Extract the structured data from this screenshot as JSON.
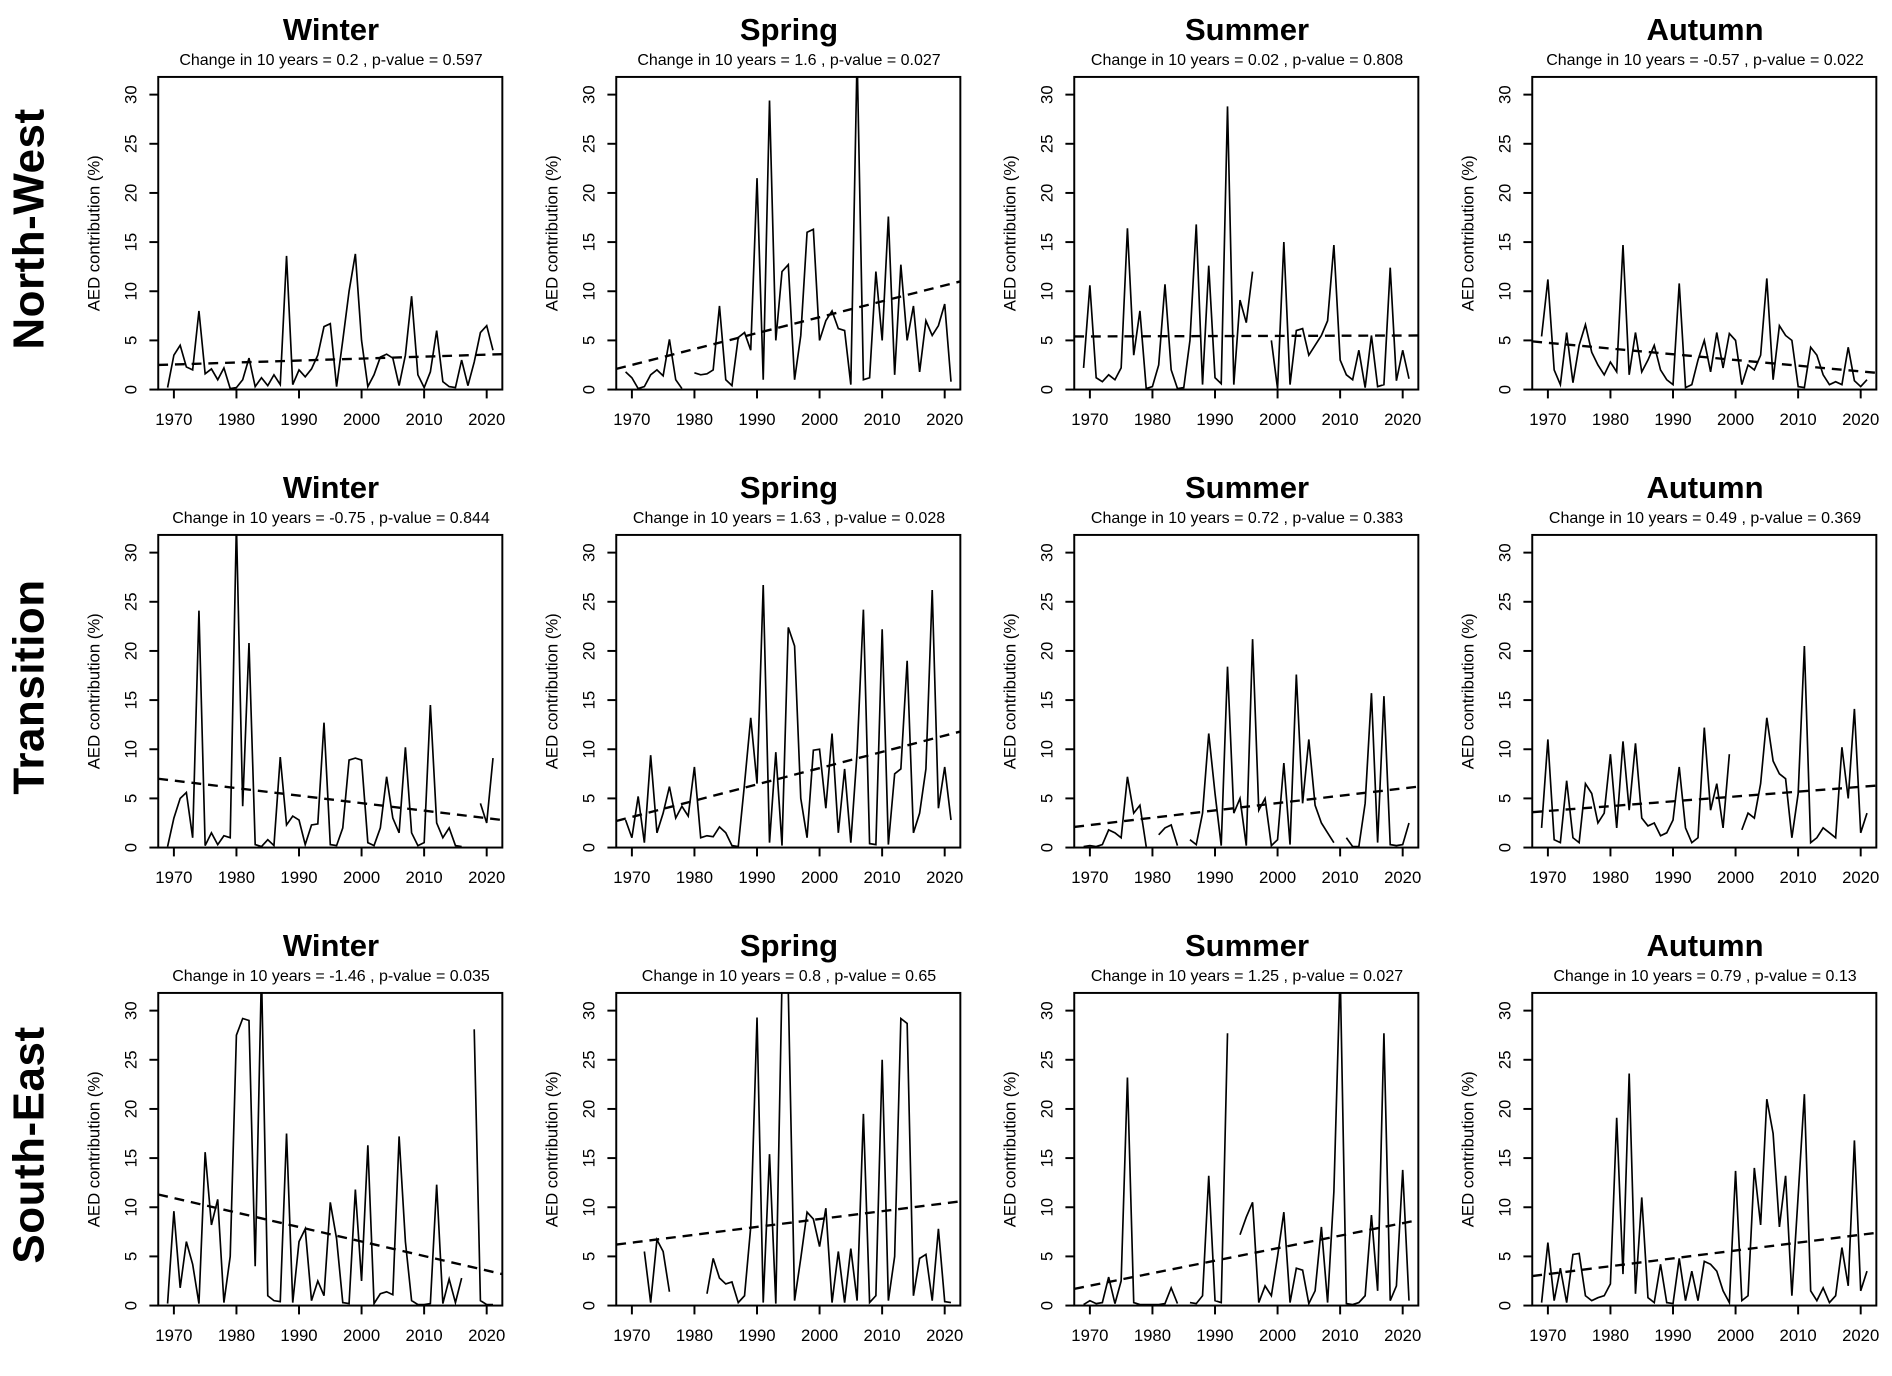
{
  "figure": {
    "ylabel": "AED contribution (%)",
    "x_tick_labels": [
      "1970",
      "1980",
      "1990",
      "2000",
      "2010",
      "2020"
    ],
    "y_tick_labels": [
      "0",
      "5",
      "10",
      "15",
      "20",
      "25",
      "30"
    ],
    "line_color": "#000000",
    "background_color": "#ffffff"
  },
  "chart_data": {
    "type": "line",
    "rows": [
      "North-West",
      "Transition",
      "South-East"
    ],
    "columns": [
      "Winter",
      "Spring",
      "Summer",
      "Autumn"
    ],
    "xlabel": "",
    "ylabel": "AED contribution (%)",
    "x_ticks": [
      1970,
      1980,
      1990,
      2000,
      2010,
      2020
    ],
    "y_ticks": [
      0,
      5,
      10,
      15,
      20,
      25,
      30
    ],
    "x_range": [
      1967.5,
      2022.5
    ],
    "y_range": [
      0,
      31.8
    ],
    "x_years_start": 1969,
    "x_years_end": 2021,
    "panels": [
      {
        "region": "North-West",
        "season": "Winter",
        "subtitle": "Change in 10 years = 0.2 , p-value = 0.597",
        "change_per_10y": 0.2,
        "p_value": 0.597,
        "trend_endpoints": [
          2.5,
          3.6
        ],
        "values": [
          0.2,
          3.5,
          4.5,
          2.3,
          2.0,
          8.0,
          1.6,
          2.1,
          1.0,
          2.2,
          0.1,
          0.2,
          1.0,
          3.2,
          0.3,
          1.2,
          0.4,
          1.5,
          0.5,
          13.6,
          0.5,
          2.0,
          1.3,
          2.1,
          3.5,
          6.4,
          6.7,
          0.3,
          5.0,
          10.0,
          13.8,
          5.0,
          0.3,
          1.5,
          3.3,
          3.6,
          3.2,
          0.4,
          3.5,
          9.5,
          1.5,
          0.2,
          1.8,
          6.0,
          0.8,
          0.3,
          0.2,
          3.0,
          0.4,
          2.8,
          5.8,
          6.5,
          4.0
        ]
      },
      {
        "region": "North-West",
        "season": "Spring",
        "subtitle": "Change in 10 years = 1.6 , p-value = 0.027",
        "change_per_10y": 1.6,
        "p_value": 0.027,
        "trend_endpoints": [
          2.1,
          11.0
        ],
        "values": [
          1.8,
          1.2,
          0.1,
          0.3,
          1.5,
          2.0,
          1.4,
          5.1,
          1.0,
          0.1,
          null,
          1.7,
          1.5,
          1.6,
          2.0,
          8.5,
          1.0,
          0.4,
          5.3,
          5.8,
          4.0,
          21.5,
          1.0,
          29.4,
          5.0,
          12.0,
          12.7,
          1.0,
          5.5,
          16.0,
          16.3,
          5.0,
          7.0,
          8.0,
          6.2,
          6.0,
          0.5,
          34.0,
          1.0,
          1.2,
          12.0,
          5.0,
          17.6,
          1.5,
          12.7,
          5.0,
          8.5,
          1.8,
          7.0,
          5.5,
          6.5,
          8.7,
          0.8
        ]
      },
      {
        "region": "North-West",
        "season": "Summer",
        "subtitle": "Change in 10 years = 0.02 , p-value = 0.808",
        "change_per_10y": 0.02,
        "p_value": 0.808,
        "trend_endpoints": [
          5.4,
          5.5
        ],
        "values": [
          2.2,
          10.6,
          1.2,
          0.8,
          1.5,
          1.0,
          2.2,
          16.4,
          3.5,
          8.0,
          0.1,
          0.3,
          2.5,
          10.7,
          2.0,
          0.1,
          0.2,
          5.0,
          16.8,
          0.5,
          12.6,
          1.2,
          0.6,
          28.8,
          0.5,
          9.1,
          6.8,
          12.0,
          null,
          null,
          5.0,
          0.1,
          15.0,
          0.5,
          6.0,
          6.2,
          3.5,
          4.5,
          5.5,
          7.0,
          14.7,
          3.0,
          1.5,
          1.0,
          4.0,
          0.2,
          5.5,
          0.3,
          0.5,
          12.4,
          0.9,
          4.0,
          1.1
        ]
      },
      {
        "region": "North-West",
        "season": "Autumn",
        "subtitle": "Change in 10 years = -0.57 , p-value = 0.022",
        "change_per_10y": -0.57,
        "p_value": 0.022,
        "trend_endpoints": [
          4.9,
          1.7
        ],
        "values": [
          5.4,
          11.2,
          2.0,
          0.5,
          5.8,
          0.7,
          4.5,
          6.6,
          3.8,
          2.5,
          1.5,
          2.8,
          1.8,
          14.7,
          1.5,
          5.8,
          1.8,
          3.0,
          4.5,
          2.0,
          1.0,
          0.5,
          10.8,
          0.2,
          0.5,
          3.0,
          5.0,
          1.8,
          5.8,
          2.2,
          5.7,
          5.0,
          0.5,
          2.5,
          2.0,
          3.5,
          11.3,
          1.0,
          6.5,
          5.5,
          5.0,
          0.3,
          0.2,
          4.3,
          3.5,
          1.5,
          0.5,
          0.8,
          0.5,
          4.3,
          0.9,
          0.3,
          1.0
        ]
      },
      {
        "region": "Transition",
        "season": "Winter",
        "subtitle": "Change in 10 years = -0.75 , p-value = 0.844",
        "change_per_10y": -0.75,
        "p_value": 0.844,
        "trend_endpoints": [
          7.0,
          2.8
        ],
        "values": [
          0.1,
          3.0,
          5.0,
          5.6,
          1.0,
          24.1,
          0.2,
          1.5,
          0.3,
          1.2,
          1.0,
          33.0,
          4.2,
          20.8,
          0.3,
          0.1,
          0.8,
          0.2,
          9.2,
          2.3,
          3.2,
          2.8,
          0.3,
          2.3,
          2.4,
          12.7,
          0.3,
          0.2,
          2.0,
          8.9,
          9.1,
          8.9,
          0.5,
          0.2,
          2.0,
          7.2,
          3.0,
          1.5,
          10.2,
          1.5,
          0.2,
          0.5,
          14.5,
          2.5,
          1.0,
          2.0,
          0.2,
          0.1,
          null,
          null,
          4.5,
          2.5,
          9.1
        ]
      },
      {
        "region": "Transition",
        "season": "Spring",
        "subtitle": "Change in 10 years = 1.63 , p-value = 0.028",
        "change_per_10y": 1.63,
        "p_value": 0.028,
        "trend_endpoints": [
          2.7,
          11.8
        ],
        "values": [
          2.8,
          1.0,
          5.2,
          0.5,
          9.4,
          1.5,
          3.5,
          6.2,
          3.0,
          4.2,
          3.2,
          8.2,
          1.0,
          1.2,
          1.1,
          2.1,
          1.5,
          0.2,
          0.1,
          6.5,
          13.2,
          6.5,
          26.7,
          0.5,
          9.7,
          0.2,
          22.4,
          20.5,
          5.0,
          1.0,
          9.9,
          10.0,
          4.0,
          11.6,
          1.5,
          8.0,
          0.5,
          9.7,
          24.2,
          0.4,
          0.3,
          22.2,
          0.3,
          7.5,
          8.0,
          19.0,
          1.5,
          3.5,
          8.0,
          26.2,
          4.0,
          8.2,
          2.8
        ]
      },
      {
        "region": "Transition",
        "season": "Summer",
        "subtitle": "Change in 10 years = 0.72 , p-value = 0.383",
        "change_per_10y": 0.72,
        "p_value": 0.383,
        "trend_endpoints": [
          2.1,
          6.2
        ],
        "values": [
          0.1,
          0.2,
          0.1,
          0.3,
          1.8,
          1.5,
          1.0,
          7.2,
          3.5,
          4.3,
          0.1,
          null,
          1.3,
          2.0,
          2.3,
          0.2,
          null,
          0.8,
          0.3,
          3.5,
          11.6,
          5.5,
          0.2,
          18.4,
          3.5,
          5.0,
          0.2,
          21.2,
          3.8,
          5.0,
          0.2,
          0.8,
          8.6,
          0.3,
          17.6,
          4.5,
          11.0,
          4.3,
          2.5,
          1.5,
          0.5,
          null,
          1.0,
          0.1,
          0.1,
          4.5,
          15.7,
          0.5,
          15.4,
          0.3,
          0.2,
          0.3,
          2.5
        ]
      },
      {
        "region": "Transition",
        "season": "Autumn",
        "subtitle": "Change in 10 years = 0.49 , p-value = 0.369",
        "change_per_10y": 0.49,
        "p_value": 0.369,
        "trend_endpoints": [
          3.6,
          6.3
        ],
        "values": [
          2.0,
          11.0,
          0.8,
          0.5,
          6.8,
          1.0,
          0.5,
          6.5,
          5.5,
          2.5,
          3.5,
          9.5,
          2.0,
          10.8,
          3.8,
          10.6,
          3.0,
          2.2,
          2.5,
          1.2,
          1.5,
          2.8,
          8.2,
          2.0,
          0.5,
          1.0,
          12.2,
          3.8,
          6.5,
          2.0,
          9.5,
          null,
          1.8,
          3.5,
          3.0,
          6.5,
          13.2,
          8.8,
          7.5,
          7.0,
          1.0,
          5.5,
          20.5,
          0.5,
          1.0,
          2.0,
          1.5,
          1.0,
          10.2,
          5.0,
          14.1,
          1.5,
          3.5
        ]
      },
      {
        "region": "South-East",
        "season": "Winter",
        "subtitle": "Change in 10 years = -1.46 , p-value = 0.035",
        "change_per_10y": -1.46,
        "p_value": 0.035,
        "trend_endpoints": [
          11.3,
          3.2
        ],
        "values": [
          0.2,
          9.6,
          1.8,
          6.5,
          4.2,
          0.2,
          15.6,
          8.2,
          10.8,
          0.3,
          5.0,
          27.5,
          29.2,
          29.0,
          4.0,
          34.0,
          1.0,
          0.5,
          0.4,
          17.5,
          0.3,
          6.5,
          7.8,
          0.5,
          2.5,
          1.0,
          10.5,
          6.8,
          0.3,
          0.2,
          11.8,
          2.5,
          16.3,
          0.2,
          1.2,
          1.4,
          1.1,
          17.2,
          6.5,
          0.5,
          0.1,
          0.1,
          0.2,
          12.3,
          0.2,
          2.7,
          0.3,
          2.8,
          null,
          28.1,
          0.5,
          0.1,
          0.1
        ]
      },
      {
        "region": "South-East",
        "season": "Spring",
        "subtitle": "Change in 10 years = 0.8 , p-value = 0.65",
        "change_per_10y": 0.8,
        "p_value": 0.65,
        "trend_endpoints": [
          6.2,
          10.6
        ],
        "values": [
          null,
          null,
          null,
          5.5,
          0.3,
          6.7,
          5.5,
          1.4,
          null,
          null,
          null,
          null,
          null,
          1.2,
          4.8,
          2.8,
          2.2,
          2.4,
          0.3,
          1.0,
          8.0,
          29.3,
          0.3,
          15.4,
          0.2,
          33.0,
          32.0,
          0.5,
          4.8,
          9.5,
          8.8,
          6.0,
          9.9,
          0.3,
          5.5,
          0.3,
          5.8,
          0.5,
          19.5,
          0.3,
          1.0,
          25.0,
          0.5,
          5.0,
          29.2,
          28.7,
          1.0,
          4.8,
          5.2,
          0.5,
          7.8,
          0.4,
          0.3
        ]
      },
      {
        "region": "South-East",
        "season": "Summer",
        "subtitle": "Change in 10 years = 1.25 , p-value = 0.027",
        "change_per_10y": 1.25,
        "p_value": 0.027,
        "trend_endpoints": [
          1.7,
          8.7
        ],
        "values": [
          0.1,
          0.5,
          0.2,
          0.3,
          2.9,
          0.2,
          2.5,
          23.2,
          0.3,
          0.1,
          0.1,
          0.1,
          0.1,
          0.2,
          1.8,
          0.2,
          null,
          0.3,
          0.2,
          1.0,
          13.2,
          0.5,
          0.3,
          27.7,
          null,
          7.2,
          9.0,
          10.5,
          0.3,
          2.0,
          1.0,
          5.0,
          9.5,
          0.3,
          3.8,
          3.6,
          0.2,
          1.5,
          8.0,
          0.3,
          11.6,
          34.0,
          0.2,
          0.1,
          0.3,
          1.0,
          9.2,
          1.5,
          27.7,
          0.5,
          2.0,
          13.8,
          0.5
        ]
      },
      {
        "region": "South-East",
        "season": "Autumn",
        "subtitle": "Change in 10 years = 0.79 , p-value = 0.13",
        "change_per_10y": 0.79,
        "p_value": 0.13,
        "trend_endpoints": [
          3.0,
          7.4
        ],
        "values": [
          0.3,
          6.4,
          0.5,
          3.8,
          0.3,
          5.2,
          5.3,
          1.0,
          0.5,
          0.8,
          1.0,
          2.2,
          19.1,
          3.2,
          23.6,
          1.2,
          11.0,
          0.8,
          0.3,
          4.2,
          0.3,
          0.2,
          4.8,
          0.5,
          3.5,
          0.5,
          4.5,
          4.2,
          3.5,
          1.5,
          0.3,
          13.7,
          0.5,
          1.0,
          14.0,
          8.2,
          21.0,
          17.5,
          8.0,
          13.2,
          1.0,
          11.2,
          21.5,
          1.5,
          0.5,
          1.8,
          0.3,
          1.0,
          5.9,
          2.0,
          16.8,
          1.5,
          3.5
        ]
      }
    ]
  }
}
